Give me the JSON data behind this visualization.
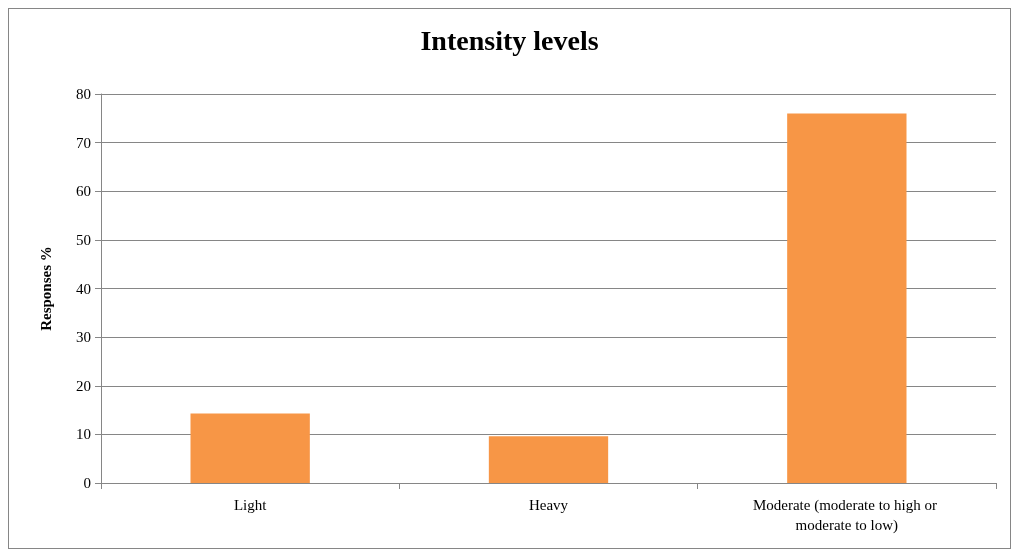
{
  "chart_data": {
    "type": "bar",
    "title": "Intensity levels",
    "ylabel": "Responses %",
    "categories": [
      "Light",
      "Heavy",
      "Moderate (moderate to high or moderate to low)"
    ],
    "values": [
      14.3,
      9.6,
      76
    ],
    "color": "#f79646",
    "ylim": [
      0,
      80
    ],
    "yticks": [
      0,
      10,
      20,
      30,
      40,
      50,
      60,
      70,
      80
    ],
    "grid": "y"
  }
}
